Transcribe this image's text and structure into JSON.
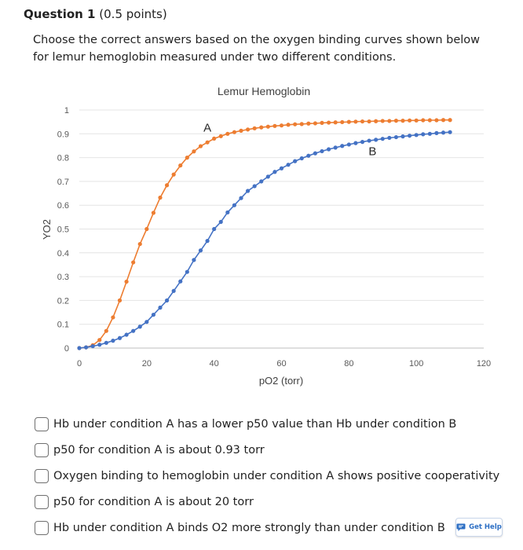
{
  "question": {
    "number_label": "Question 1",
    "points_label": "(0.5 points)",
    "prompt": "Choose the correct answers based on the oxygen binding curves shown below for lemur hemoglobin measured under two different conditions."
  },
  "chart_data": {
    "type": "line",
    "title": "Lemur Hemoglobin",
    "xlabel": "pO2 (torr)",
    "ylabel": "YO2",
    "xlim": [
      0,
      120
    ],
    "ylim": [
      0,
      1
    ],
    "x_ticks": [
      0,
      20,
      40,
      60,
      80,
      100,
      120
    ],
    "y_ticks": [
      0,
      0.1,
      0.2,
      0.3,
      0.4,
      0.5,
      0.6,
      0.7,
      0.8,
      0.9,
      1
    ],
    "x_tick_labels": [
      "0",
      "20",
      "40",
      "60",
      "80",
      "100",
      "120"
    ],
    "y_tick_labels": [
      "0",
      "0.1",
      "0.2",
      "0.3",
      "0.4",
      "0.5",
      "0.6",
      "0.7",
      "0.8",
      "0.9",
      "1"
    ],
    "grid": "horizontal",
    "series": [
      {
        "name": "A",
        "color": "#ed7d31",
        "x": [
          0,
          2,
          4,
          6,
          8,
          10,
          12,
          14,
          16,
          18,
          20,
          22,
          24,
          26,
          28,
          30,
          32,
          34,
          36,
          38,
          40,
          42,
          44,
          46,
          48,
          50,
          52,
          54,
          56,
          58,
          60,
          62,
          64,
          66,
          68,
          70,
          72,
          74,
          76,
          78,
          80,
          82,
          84,
          86,
          88,
          90,
          92,
          94,
          96,
          98,
          100,
          102,
          104,
          106,
          108,
          110
        ],
        "y": [
          0,
          0.003,
          0.012,
          0.034,
          0.072,
          0.129,
          0.2,
          0.279,
          0.36,
          0.437,
          0.5,
          0.568,
          0.632,
          0.684,
          0.729,
          0.767,
          0.8,
          0.826,
          0.848,
          0.864,
          0.88,
          0.89,
          0.9,
          0.907,
          0.913,
          0.918,
          0.923,
          0.927,
          0.93,
          0.933,
          0.935,
          0.938,
          0.94,
          0.941,
          0.943,
          0.944,
          0.946,
          0.947,
          0.948,
          0.949,
          0.95,
          0.951,
          0.952,
          0.952,
          0.953,
          0.954,
          0.954,
          0.955,
          0.955,
          0.956,
          0.956,
          0.957,
          0.957,
          0.957,
          0.958,
          0.958
        ]
      },
      {
        "name": "B",
        "color": "#4472c4",
        "x": [
          0,
          2,
          4,
          6,
          8,
          10,
          12,
          14,
          16,
          18,
          20,
          22,
          24,
          26,
          28,
          30,
          32,
          34,
          36,
          38,
          40,
          42,
          44,
          46,
          48,
          50,
          52,
          54,
          56,
          58,
          60,
          62,
          64,
          66,
          68,
          70,
          72,
          74,
          76,
          78,
          80,
          82,
          84,
          86,
          88,
          90,
          92,
          94,
          96,
          98,
          100,
          102,
          104,
          106,
          108,
          110
        ],
        "y": [
          0,
          0.003,
          0.008,
          0.014,
          0.022,
          0.031,
          0.042,
          0.056,
          0.072,
          0.09,
          0.11,
          0.14,
          0.17,
          0.2,
          0.24,
          0.28,
          0.32,
          0.37,
          0.41,
          0.45,
          0.5,
          0.53,
          0.57,
          0.6,
          0.63,
          0.66,
          0.68,
          0.7,
          0.72,
          0.74,
          0.755,
          0.77,
          0.785,
          0.797,
          0.808,
          0.818,
          0.827,
          0.835,
          0.842,
          0.849,
          0.855,
          0.861,
          0.866,
          0.871,
          0.875,
          0.879,
          0.883,
          0.886,
          0.889,
          0.892,
          0.895,
          0.898,
          0.9,
          0.903,
          0.905,
          0.907
        ]
      }
    ],
    "annotations": [
      {
        "text": "A",
        "x": 38,
        "y": 0.91
      },
      {
        "text": "B",
        "x": 87,
        "y": 0.81
      }
    ]
  },
  "options": [
    {
      "label": "Hb under condition A has a lower p50 value than Hb under condition B",
      "checked": false
    },
    {
      "label": "p50 for condition A is about 0.93 torr",
      "checked": false
    },
    {
      "label": "Oxygen binding to hemoglobin under condition A shows positive cooperativity",
      "checked": false
    },
    {
      "label": "p50 for condition A is about 20 torr",
      "checked": false
    },
    {
      "label": "Hb under condition A binds O2 more strongly than under condition B",
      "checked": false
    }
  ],
  "help": {
    "label": "Get Help",
    "icon": "chat-bubble-icon",
    "color": "#2d6fc4"
  }
}
